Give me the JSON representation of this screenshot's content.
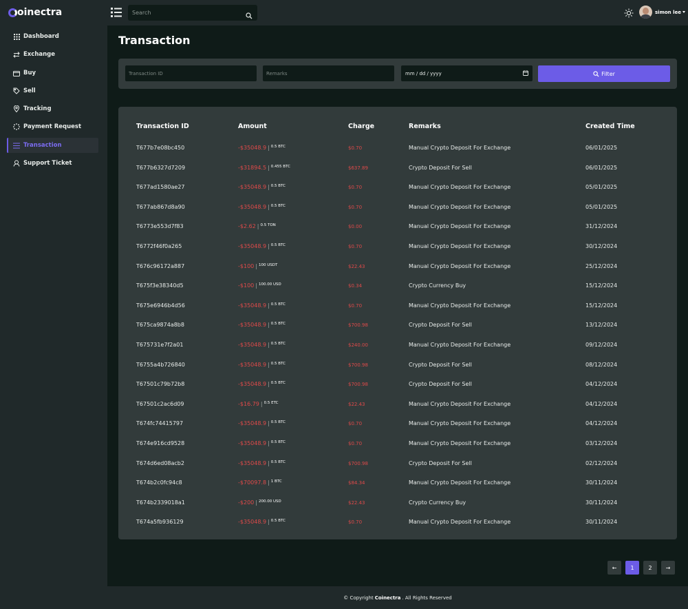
{
  "brand": {
    "name_start": "",
    "name_rest": "oinectra"
  },
  "topbar": {
    "search_placeholder": "Search",
    "user_name": "simon lee"
  },
  "sidebar": {
    "items": [
      {
        "label": "Dashboard",
        "icon": "grid-icon"
      },
      {
        "label": "Exchange",
        "icon": "exchange-icon"
      },
      {
        "label": "Buy",
        "icon": "wallet-icon"
      },
      {
        "label": "Sell",
        "icon": "tag-icon"
      },
      {
        "label": "Tracking",
        "icon": "location-pin-icon"
      },
      {
        "label": "Payment Request",
        "icon": "spinner-icon"
      },
      {
        "label": "Transaction",
        "icon": "list-icon"
      },
      {
        "label": "Support Ticket",
        "icon": "support-agent-icon"
      }
    ],
    "active": "Transaction"
  },
  "page": {
    "title": "Transaction"
  },
  "filter": {
    "transaction_id_placeholder": "Transaction ID",
    "remarks_placeholder": "Remarks",
    "date_placeholder": "mm / dd / yyyy",
    "button_label": "Filter"
  },
  "table": {
    "headers": [
      "Transaction ID",
      "Amount",
      "Charge",
      "Remarks",
      "Created Time"
    ],
    "rows": [
      {
        "id": "T677b7e08bc450",
        "amount": "-$35048.9",
        "unit": "0.5 BTC",
        "charge": "$0.70",
        "remarks": "Manual Crypto Deposit For Exchange",
        "time": "06/01/2025"
      },
      {
        "id": "T677b6327d7209",
        "amount": "-$31894.5",
        "unit": "0.455 BTC",
        "charge": "$637.89",
        "remarks": "Crypto Deposit For Sell",
        "time": "06/01/2025"
      },
      {
        "id": "T677ad1580ae27",
        "amount": "-$35048.9",
        "unit": "0.5 BTC",
        "charge": "$0.70",
        "remarks": "Manual Crypto Deposit For Exchange",
        "time": "05/01/2025"
      },
      {
        "id": "T677ab867d8a90",
        "amount": "-$35048.9",
        "unit": "0.5 BTC",
        "charge": "$0.70",
        "remarks": "Manual Crypto Deposit For Exchange",
        "time": "05/01/2025"
      },
      {
        "id": "T6773e553d7f83",
        "amount": "-$2.62",
        "unit": "0.5 TON",
        "charge": "$0.00",
        "remarks": "Manual Crypto Deposit For Exchange",
        "time": "31/12/2024"
      },
      {
        "id": "T6772f46f0a265",
        "amount": "-$35048.9",
        "unit": "0.5 BTC",
        "charge": "$0.70",
        "remarks": "Manual Crypto Deposit For Exchange",
        "time": "30/12/2024"
      },
      {
        "id": "T676c96172a887",
        "amount": "-$100",
        "unit": "100 USDT",
        "charge": "$22.43",
        "remarks": "Manual Crypto Deposit For Exchange",
        "time": "25/12/2024"
      },
      {
        "id": "T675f3e38340d5",
        "amount": "-$100",
        "unit": "100.00 USD",
        "charge": "$0.34",
        "remarks": "Crypto Currency Buy",
        "time": "15/12/2024"
      },
      {
        "id": "T675e6946b4d56",
        "amount": "-$35048.9",
        "unit": "0.5 BTC",
        "charge": "$0.70",
        "remarks": "Manual Crypto Deposit For Exchange",
        "time": "15/12/2024"
      },
      {
        "id": "T675ca9874a8b8",
        "amount": "-$35048.9",
        "unit": "0.5 BTC",
        "charge": "$700.98",
        "remarks": "Crypto Deposit For Sell",
        "time": "13/12/2024"
      },
      {
        "id": "T675731e7f2a01",
        "amount": "-$35048.9",
        "unit": "0.5 BTC",
        "charge": "$240.00",
        "remarks": "Manual Crypto Deposit For Exchange",
        "time": "09/12/2024"
      },
      {
        "id": "T6755a4b726840",
        "amount": "-$35048.9",
        "unit": "0.5 BTC",
        "charge": "$700.98",
        "remarks": "Crypto Deposit For Sell",
        "time": "08/12/2024"
      },
      {
        "id": "T67501c79b72b8",
        "amount": "-$35048.9",
        "unit": "0.5 BTC",
        "charge": "$700.98",
        "remarks": "Crypto Deposit For Sell",
        "time": "04/12/2024"
      },
      {
        "id": "T67501c2ac6d09",
        "amount": "-$16.79",
        "unit": "0.5 ETC",
        "charge": "$22.43",
        "remarks": "Manual Crypto Deposit For Exchange",
        "time": "04/12/2024"
      },
      {
        "id": "T674fc74415797",
        "amount": "-$35048.9",
        "unit": "0.5 BTC",
        "charge": "$0.70",
        "remarks": "Manual Crypto Deposit For Exchange",
        "time": "04/12/2024"
      },
      {
        "id": "T674e916cd9528",
        "amount": "-$35048.9",
        "unit": "0.5 BTC",
        "charge": "$0.70",
        "remarks": "Manual Crypto Deposit For Exchange",
        "time": "03/12/2024"
      },
      {
        "id": "T674d6ed08acb2",
        "amount": "-$35048.9",
        "unit": "0.5 BTC",
        "charge": "$700.98",
        "remarks": "Crypto Deposit For Sell",
        "time": "02/12/2024"
      },
      {
        "id": "T674b2c0fc94c8",
        "amount": "-$70097.8",
        "unit": "1 BTC",
        "charge": "$84.34",
        "remarks": "Manual Crypto Deposit For Exchange",
        "time": "30/11/2024"
      },
      {
        "id": "T674b2339018a1",
        "amount": "-$200",
        "unit": "200.00 USD",
        "charge": "$22.43",
        "remarks": "Crypto Currency Buy",
        "time": "30/11/2024"
      },
      {
        "id": "T674a5fb936129",
        "amount": "-$35048.9",
        "unit": "0.5 BTC",
        "charge": "$0.70",
        "remarks": "Manual Crypto Deposit For Exchange",
        "time": "30/11/2024"
      }
    ]
  },
  "pagination": {
    "prev": "←",
    "pages": [
      "1",
      "2"
    ],
    "current": "1",
    "next": "→"
  },
  "footer": {
    "prefix": "© Copyright",
    "brand": "Coinectra",
    "suffix": ". All Rights Reserved"
  },
  "colors": {
    "accent": "#6c5ce7",
    "negative": "#e04a4a",
    "panel": "#323b3b",
    "background": "#0f1b18"
  }
}
